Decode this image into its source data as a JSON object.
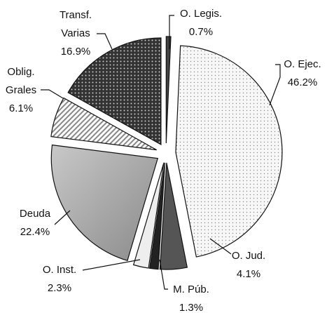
{
  "chart_data": {
    "type": "pie",
    "categories": [
      [
        "O. Legis."
      ],
      [
        "O. Ejec."
      ],
      [
        "O. Jud."
      ],
      [
        "M. Púb."
      ],
      [
        "O. Inst."
      ],
      [
        "Deuda"
      ],
      [
        "Oblig.",
        "Grales"
      ],
      [
        "Transf.",
        "Varias"
      ]
    ],
    "values": [
      0.7,
      46.2,
      4.1,
      1.3,
      2.3,
      22.4,
      6.1,
      16.9
    ],
    "value_labels": [
      "0.7%",
      "46.2%",
      "4.1%",
      "1.3%",
      "2.3%",
      "22.4%",
      "6.1%",
      "16.9%"
    ],
    "colors": [
      "#444444",
      "#f4f4f4",
      "#555555",
      "#222222",
      "#eeeeee",
      "#a8a8a8",
      "#cccccc",
      "#3a3a3a"
    ]
  }
}
